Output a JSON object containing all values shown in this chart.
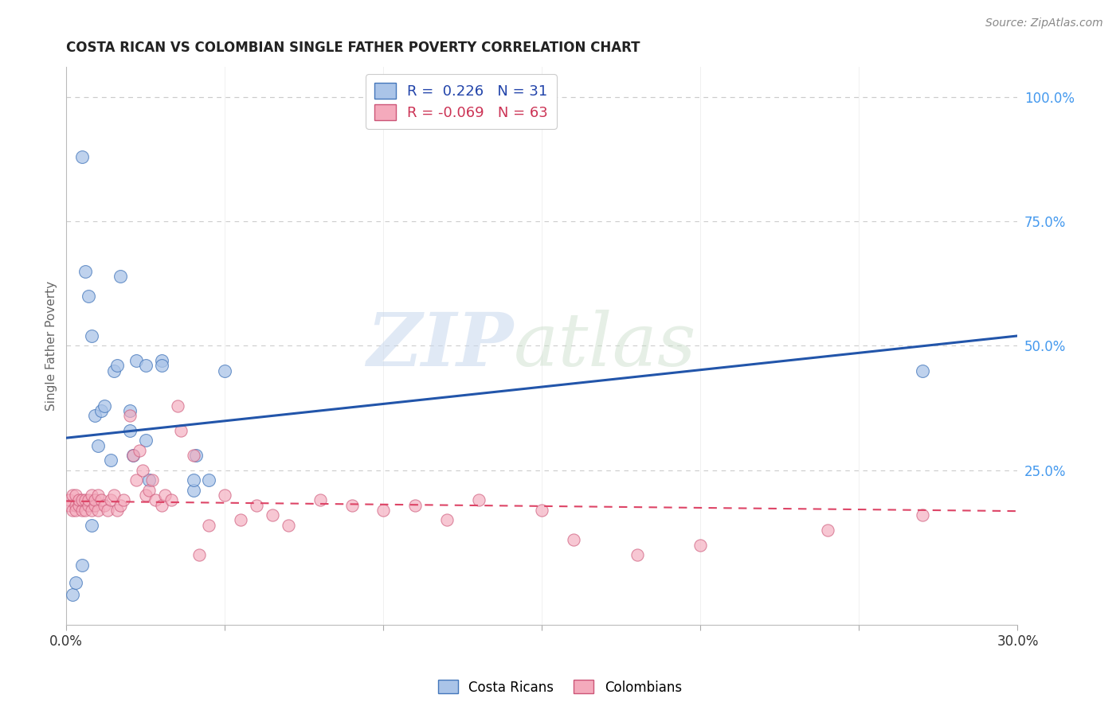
{
  "title": "COSTA RICAN VS COLOMBIAN SINGLE FATHER POVERTY CORRELATION CHART",
  "source": "Source: ZipAtlas.com",
  "ylabel": "Single Father Poverty",
  "right_yticks": [
    "100.0%",
    "75.0%",
    "50.0%",
    "25.0%"
  ],
  "right_ytick_vals": [
    1.0,
    0.75,
    0.5,
    0.25
  ],
  "watermark_zip": "ZIP",
  "watermark_atlas": "atlas",
  "legend_cr_R": " 0.226",
  "legend_cr_N": "31",
  "legend_co_R": "-0.069",
  "legend_co_N": "63",
  "cr_fill_color": "#aac4e8",
  "co_fill_color": "#f4aabc",
  "cr_edge_color": "#4477bb",
  "co_edge_color": "#cc5577",
  "cr_line_color": "#2255aa",
  "co_line_color": "#dd4466",
  "background_color": "#ffffff",
  "xlim": [
    0.0,
    0.3
  ],
  "ylim": [
    -0.06,
    1.06
  ],
  "xtick_positions": [
    0.0,
    0.05,
    0.1,
    0.15,
    0.2,
    0.25,
    0.3
  ],
  "costa_rican_x": [
    0.002,
    0.003,
    0.005,
    0.006,
    0.007,
    0.008,
    0.009,
    0.01,
    0.011,
    0.012,
    0.014,
    0.015,
    0.016,
    0.017,
    0.02,
    0.02,
    0.021,
    0.022,
    0.025,
    0.025,
    0.026,
    0.03,
    0.03,
    0.04,
    0.04,
    0.041,
    0.045,
    0.05,
    0.27,
    0.005,
    0.008
  ],
  "costa_rican_y": [
    0.0,
    0.025,
    0.88,
    0.65,
    0.6,
    0.52,
    0.36,
    0.3,
    0.37,
    0.38,
    0.27,
    0.45,
    0.46,
    0.64,
    0.33,
    0.37,
    0.28,
    0.47,
    0.46,
    0.31,
    0.23,
    0.47,
    0.46,
    0.21,
    0.23,
    0.28,
    0.23,
    0.45,
    0.45,
    0.06,
    0.14
  ],
  "colombian_x": [
    0.001,
    0.001,
    0.002,
    0.002,
    0.003,
    0.003,
    0.003,
    0.004,
    0.004,
    0.005,
    0.005,
    0.006,
    0.006,
    0.007,
    0.007,
    0.008,
    0.008,
    0.009,
    0.009,
    0.01,
    0.01,
    0.011,
    0.012,
    0.013,
    0.014,
    0.015,
    0.016,
    0.017,
    0.018,
    0.02,
    0.021,
    0.022,
    0.023,
    0.024,
    0.025,
    0.026,
    0.027,
    0.028,
    0.03,
    0.031,
    0.033,
    0.035,
    0.036,
    0.04,
    0.042,
    0.045,
    0.05,
    0.055,
    0.06,
    0.065,
    0.07,
    0.08,
    0.09,
    0.1,
    0.11,
    0.12,
    0.13,
    0.15,
    0.16,
    0.18,
    0.2,
    0.24,
    0.27
  ],
  "colombian_y": [
    0.19,
    0.18,
    0.17,
    0.2,
    0.18,
    0.2,
    0.17,
    0.18,
    0.19,
    0.17,
    0.19,
    0.17,
    0.19,
    0.18,
    0.19,
    0.17,
    0.2,
    0.18,
    0.19,
    0.17,
    0.2,
    0.19,
    0.18,
    0.17,
    0.19,
    0.2,
    0.17,
    0.18,
    0.19,
    0.36,
    0.28,
    0.23,
    0.29,
    0.25,
    0.2,
    0.21,
    0.23,
    0.19,
    0.18,
    0.2,
    0.19,
    0.38,
    0.33,
    0.28,
    0.08,
    0.14,
    0.2,
    0.15,
    0.18,
    0.16,
    0.14,
    0.19,
    0.18,
    0.17,
    0.18,
    0.15,
    0.19,
    0.17,
    0.11,
    0.08,
    0.1,
    0.13,
    0.16
  ]
}
